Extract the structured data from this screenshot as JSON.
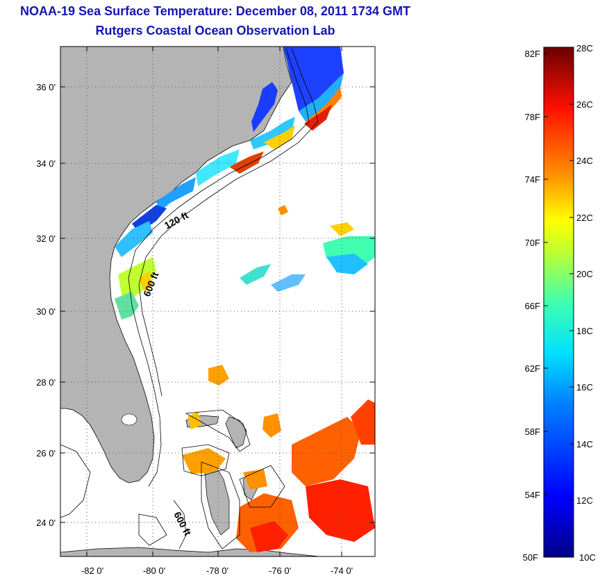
{
  "title": {
    "line1": "NOAA-19 Sea Surface Temperature:  December 08, 2011 1734 GMT",
    "line2": "Rutgers Coastal Ocean Observation Lab"
  },
  "map": {
    "lon_labels": [
      "-82 0'",
      "-80 0'",
      "-78 0'",
      "-76 0'",
      "-74 0'"
    ],
    "lat_labels": [
      "36 0'",
      "34 0'",
      "32 0'",
      "30 0'",
      "28 0'",
      "26 0'",
      "24 0'"
    ],
    "lon_range": [
      -83,
      -73
    ],
    "lat_range": [
      23,
      37
    ],
    "contour_labels": [
      "120 ft",
      "600 ft",
      "600 ft"
    ],
    "colors": {
      "land": "#b4b4b4",
      "ocean_no_data": "#ffffff",
      "grid": "#555555"
    }
  },
  "colorbar": {
    "fahrenheit_labels": [
      "82F",
      "78F",
      "74F",
      "70F",
      "66F",
      "62F",
      "58F",
      "54F",
      "50F"
    ],
    "celsius_labels": [
      "28C",
      "26C",
      "24C",
      "22C",
      "20C",
      "18C",
      "16C",
      "14C",
      "12C",
      "10C"
    ],
    "range_c": [
      10,
      28
    ]
  }
}
